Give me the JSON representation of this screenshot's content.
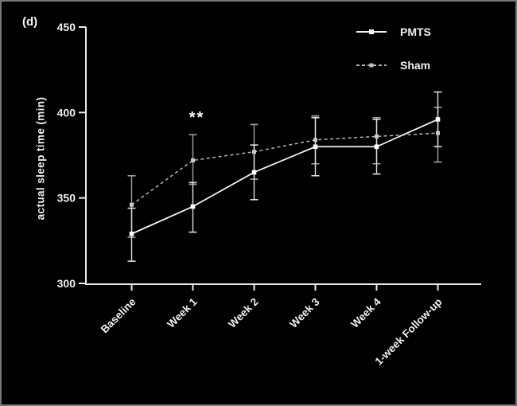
{
  "figure": {
    "panel_label": "(d)",
    "background_color": "#000000",
    "border_color": "#767676"
  },
  "chart_data": {
    "type": "line",
    "title": "",
    "xlabel": "",
    "ylabel": "actual sleep time (min)",
    "categories": [
      "Baseline",
      "Week 1",
      "Week 2",
      "Week 3",
      "Week 4",
      "1-week Follow-up"
    ],
    "ylim": [
      300,
      450
    ],
    "yticks": [
      300,
      350,
      400,
      450
    ],
    "grid": false,
    "legend_position": "top-right",
    "axis_color": "#ebebeb",
    "text_color": "#f0f0f0",
    "series": [
      {
        "name": "PMTS",
        "style": "solid",
        "color": "#f2f2f2",
        "errbar_color": "#dedede",
        "marker": "square",
        "values": [
          329,
          345,
          365,
          380,
          380,
          396
        ],
        "err_lower": [
          313,
          330,
          349,
          363,
          364,
          380
        ],
        "err_upper": [
          344,
          359,
          381,
          397,
          396,
          412
        ]
      },
      {
        "name": "Sham",
        "style": "dashed",
        "color": "#b9b9b9",
        "errbar_color": "#a3a3a3",
        "marker": "square",
        "values": [
          346,
          372,
          377,
          384,
          386,
          388
        ],
        "err_lower": [
          327,
          358,
          361,
          370,
          370,
          371
        ],
        "err_upper": [
          363,
          387,
          393,
          398,
          397,
          403
        ]
      }
    ],
    "annotations": [
      {
        "text": "**",
        "category_index": 1,
        "value": 394
      }
    ]
  }
}
